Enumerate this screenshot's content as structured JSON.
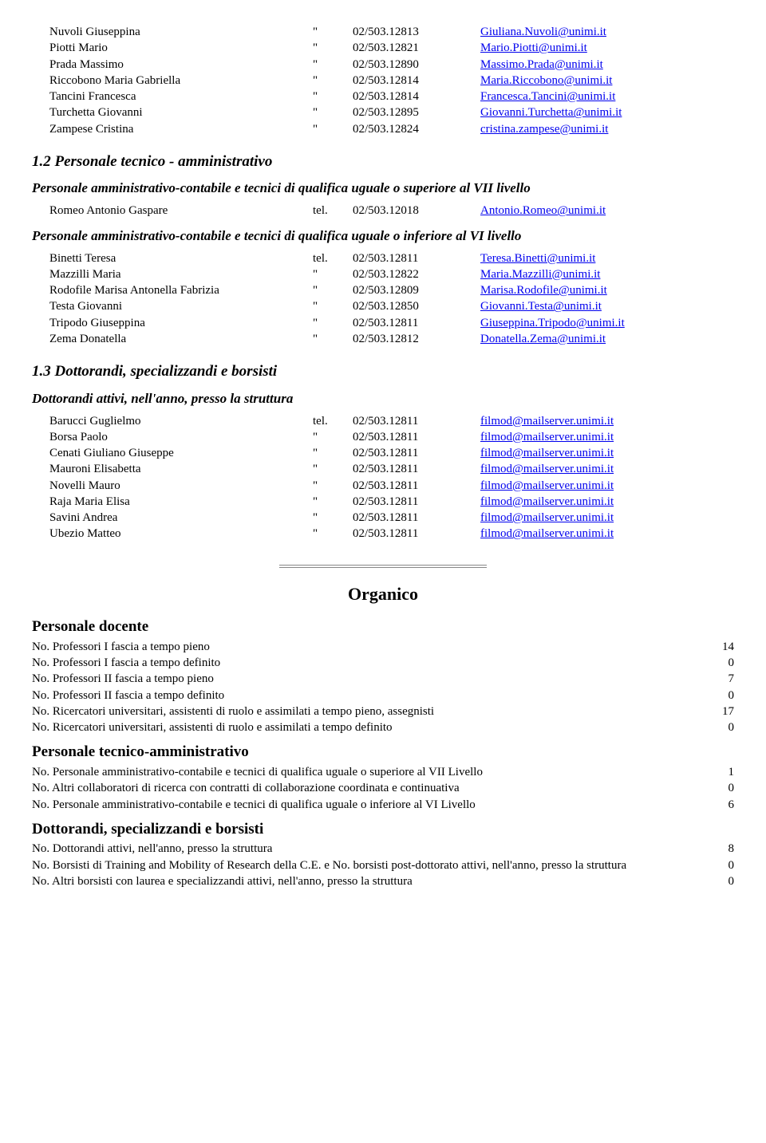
{
  "staff1": [
    {
      "name": "Nuvoli Giuseppina",
      "mark": "\"",
      "phone": "02/503.12813",
      "email": "Giuliana.Nuvoli@unimi.it"
    },
    {
      "name": "Piotti Mario",
      "mark": "\"",
      "phone": "02/503.12821",
      "email": "Mario.Piotti@unimi.it"
    },
    {
      "name": "Prada Massimo",
      "mark": "\"",
      "phone": "02/503.12890",
      "email": "Massimo.Prada@unimi.it"
    },
    {
      "name": "Riccobono Maria Gabriella",
      "mark": "\"",
      "phone": "02/503.12814",
      "email": "Maria.Riccobono@unimi.it"
    },
    {
      "name": "Tancini Francesca",
      "mark": "\"",
      "phone": "02/503.12814",
      "email": "Francesca.Tancini@unimi.it"
    },
    {
      "name": "Turchetta Giovanni",
      "mark": "\"",
      "phone": "02/503.12895",
      "email": "Giovanni.Turchetta@unimi.it"
    },
    {
      "name": "Zampese Cristina",
      "mark": "\"",
      "phone": "02/503.12824",
      "email": "cristina.zampese@unimi.it"
    }
  ],
  "h12": "1.2 Personale tecnico - amministrativo",
  "sub12a": "Personale amministrativo-contabile e tecnici di qualifica uguale o superiore al VII livello",
  "staff12a": [
    {
      "name": "Romeo Antonio Gaspare",
      "mark": "tel.",
      "phone": "02/503.12018",
      "email": "Antonio.Romeo@unimi.it"
    }
  ],
  "sub12b": "Personale amministrativo-contabile e tecnici di qualifica uguale o inferiore al VI livello",
  "staff12b": [
    {
      "name": "Binetti Teresa",
      "mark": "tel.",
      "phone": "02/503.12811",
      "email": "Teresa.Binetti@unimi.it"
    },
    {
      "name": "Mazzilli Maria",
      "mark": "\"",
      "phone": "02/503.12822",
      "email": "Maria.Mazzilli@unimi.it"
    },
    {
      "name": "Rodofile Marisa Antonella Fabrizia",
      "mark": "\"",
      "phone": "02/503.12809",
      "email": "Marisa.Rodofile@unimi.it"
    },
    {
      "name": "Testa Giovanni",
      "mark": "\"",
      "phone": "02/503.12850",
      "email": "Giovanni.Testa@unimi.it"
    },
    {
      "name": "Tripodo Giuseppina",
      "mark": "\"",
      "phone": "02/503.12811",
      "email": "Giuseppina.Tripodo@unimi.it"
    },
    {
      "name": "Zema Donatella",
      "mark": "\"",
      "phone": "02/503.12812",
      "email": "Donatella.Zema@unimi.it"
    }
  ],
  "h13": "1.3 Dottorandi, specializzandi e borsisti",
  "sub13": "Dottorandi attivi, nell'anno, presso la struttura",
  "staff13": [
    {
      "name": "Barucci Guglielmo",
      "mark": "tel.",
      "phone": "02/503.12811",
      "email": "filmod@mailserver.unimi.it"
    },
    {
      "name": "Borsa Paolo",
      "mark": "\"",
      "phone": "02/503.12811",
      "email": "filmod@mailserver.unimi.it"
    },
    {
      "name": "Cenati Giuliano Giuseppe",
      "mark": "\"",
      "phone": "02/503.12811",
      "email": "filmod@mailserver.unimi.it"
    },
    {
      "name": "Mauroni Elisabetta",
      "mark": "\"",
      "phone": "02/503.12811",
      "email": "filmod@mailserver.unimi.it"
    },
    {
      "name": "Novelli Mauro",
      "mark": "\"",
      "phone": "02/503.12811",
      "email": "filmod@mailserver.unimi.it"
    },
    {
      "name": "Raja Maria Elisa",
      "mark": "\"",
      "phone": "02/503.12811",
      "email": "filmod@mailserver.unimi.it"
    },
    {
      "name": "Savini Andrea",
      "mark": "\"",
      "phone": "02/503.12811",
      "email": "filmod@mailserver.unimi.it"
    },
    {
      "name": "Ubezio Matteo",
      "mark": "\"",
      "phone": "02/503.12811",
      "email": "filmod@mailserver.unimi.it"
    }
  ],
  "organico_title": "Organico",
  "org_sections": [
    {
      "heading": "Personale docente",
      "rows": [
        {
          "label": "No. Professori I fascia a tempo pieno",
          "val": "14"
        },
        {
          "label": "No. Professori I fascia a tempo definito",
          "val": "0"
        },
        {
          "label": "No. Professori II fascia a tempo pieno",
          "val": "7"
        },
        {
          "label": "No. Professori II fascia a tempo definito",
          "val": "0"
        },
        {
          "label": "No. Ricercatori universitari, assistenti di ruolo e assimilati a tempo pieno, assegnisti",
          "val": "17"
        },
        {
          "label": "No. Ricercatori universitari, assistenti di ruolo e assimilati a tempo definito",
          "val": "0"
        }
      ]
    },
    {
      "heading": "Personale tecnico-amministrativo",
      "rows": [
        {
          "label": "No. Personale amministrativo-contabile e tecnici di qualifica uguale o superiore al VII Livello",
          "val": "1"
        },
        {
          "label": "No. Altri collaboratori di ricerca con contratti di collaborazione coordinata e continuativa",
          "val": "0"
        },
        {
          "label": "No. Personale amministrativo-contabile e tecnici di qualifica uguale o inferiore al VI Livello",
          "val": "6"
        }
      ]
    },
    {
      "heading": "Dottorandi, specializzandi e borsisti",
      "rows": [
        {
          "label": "No. Dottorandi attivi, nell'anno, presso la struttura",
          "val": "8"
        },
        {
          "label": "No. Borsisti di Training and Mobility of Research della C.E. e No. borsisti post-dottorato attivi, nell'anno, presso la struttura",
          "val": "0"
        },
        {
          "label": "No. Altri borsisti con laurea e specializzandi attivi, nell'anno, presso la struttura",
          "val": "0"
        }
      ]
    }
  ]
}
